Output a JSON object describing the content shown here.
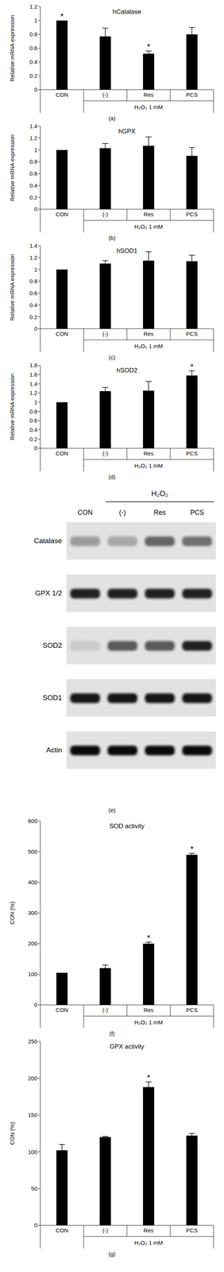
{
  "chart_data": [
    {
      "type": "bar",
      "title": "hCatalase",
      "ylabel": "Relative mRNA expression",
      "categories": [
        "CON",
        "(-)",
        "Res",
        "PCS"
      ],
      "values": [
        1.0,
        0.77,
        0.52,
        0.8
      ],
      "errors": [
        0,
        0.12,
        0.04,
        0.1
      ],
      "significance": [
        "*",
        null,
        "*",
        null
      ],
      "group_label": "H₂O₂ 1 mM",
      "annotation": "(a)",
      "color": "#000000",
      "ylim": [
        0,
        1.2
      ],
      "yticks": [
        0,
        0.2,
        0.4,
        0.6,
        0.8,
        1,
        1.2
      ]
    },
    {
      "type": "bar",
      "title": "hGPX",
      "ylabel": "Relative mRNA expression",
      "categories": [
        "CON",
        "(-)",
        "Res",
        "PCS"
      ],
      "values": [
        1.0,
        1.03,
        1.07,
        0.9
      ],
      "errors": [
        0,
        0.08,
        0.15,
        0.14
      ],
      "significance": [
        null,
        null,
        null,
        null
      ],
      "group_label": "H₂O₂ 1 mM",
      "annotation": "(b)",
      "color": "#000000",
      "ylim": [
        0,
        1.4
      ],
      "yticks": [
        0,
        0.2,
        0.4,
        0.6,
        0.8,
        1,
        1.2,
        1.4
      ]
    },
    {
      "type": "bar",
      "title": "hSOD1",
      "ylabel": "Relative mRNA expression",
      "categories": [
        "CON",
        "(-)",
        "Res",
        "PCS"
      ],
      "values": [
        1.0,
        1.1,
        1.15,
        1.14
      ],
      "errors": [
        0,
        0.05,
        0.15,
        0.1
      ],
      "significance": [
        null,
        null,
        null,
        null
      ],
      "group_label": "H₂O₂ 1 mM",
      "annotation": "(c)",
      "color": "#000000",
      "ylim": [
        0,
        1.4
      ],
      "yticks": [
        0,
        0.2,
        0.4,
        0.6,
        0.8,
        1,
        1.2,
        1.4
      ]
    },
    {
      "type": "bar",
      "title": "hSOD2",
      "ylabel": "Relative mRNA expression",
      "categories": [
        "CON",
        "(-)",
        "Res",
        "PCS"
      ],
      "values": [
        1.0,
        1.24,
        1.25,
        1.58
      ],
      "errors": [
        0,
        0.08,
        0.2,
        0.1
      ],
      "significance": [
        null,
        null,
        null,
        "*"
      ],
      "group_label": "H₂O₂ 1 mM",
      "annotation": "(d)",
      "color": "#000000",
      "ylim": [
        0,
        1.8
      ],
      "yticks": [
        0,
        0.2,
        0.4,
        0.6,
        0.8,
        1,
        1.2,
        1.4,
        1.6,
        1.8
      ]
    },
    {
      "type": "bar",
      "title": "SOD activity",
      "ylabel": "CON (%)",
      "categories": [
        "CON",
        "(-)",
        "Res",
        "PCS"
      ],
      "values": [
        105,
        120,
        200,
        490
      ],
      "errors": [
        0,
        10,
        5,
        5
      ],
      "significance": [
        null,
        null,
        "*",
        "*"
      ],
      "group_label": "H₂O₂ 1 mM",
      "annotation": "(f)",
      "color": "#000000",
      "ylim": [
        0,
        600
      ],
      "yticks": [
        0,
        100,
        200,
        300,
        400,
        500,
        600
      ]
    },
    {
      "type": "bar",
      "title": "GPX activity",
      "ylabel": "CON (%)",
      "categories": [
        "CON",
        "(-)",
        "Res",
        "PCS"
      ],
      "values": [
        102,
        120,
        188,
        122
      ],
      "errors": [
        8,
        1,
        7,
        3
      ],
      "significance": [
        null,
        null,
        "*",
        null
      ],
      "group_label": "H₂O₂ 1 mM",
      "annotation": "(g)",
      "color": "#000000",
      "ylim": [
        0,
        250
      ],
      "yticks": [
        0,
        50,
        100,
        150,
        200,
        250
      ]
    }
  ],
  "blot": {
    "annotation": "(e)",
    "treatment_label": "H₂O₂",
    "lanes": [
      "CON",
      "(-)",
      "Res",
      "PCS"
    ],
    "rows": [
      {
        "label": "Catalase",
        "band_intensity": [
          0.3,
          0.25,
          0.55,
          0.5
        ]
      },
      {
        "label": "GPX 1/2",
        "band_intensity": [
          0.85,
          0.85,
          0.85,
          0.85
        ]
      },
      {
        "label": "SOD2",
        "band_intensity": [
          0.1,
          0.6,
          0.6,
          0.85
        ]
      },
      {
        "label": "SOD1",
        "band_intensity": [
          0.9,
          0.9,
          0.9,
          0.9
        ]
      },
      {
        "label": "Actin",
        "band_intensity": [
          0.95,
          0.95,
          0.95,
          0.95
        ]
      }
    ]
  }
}
